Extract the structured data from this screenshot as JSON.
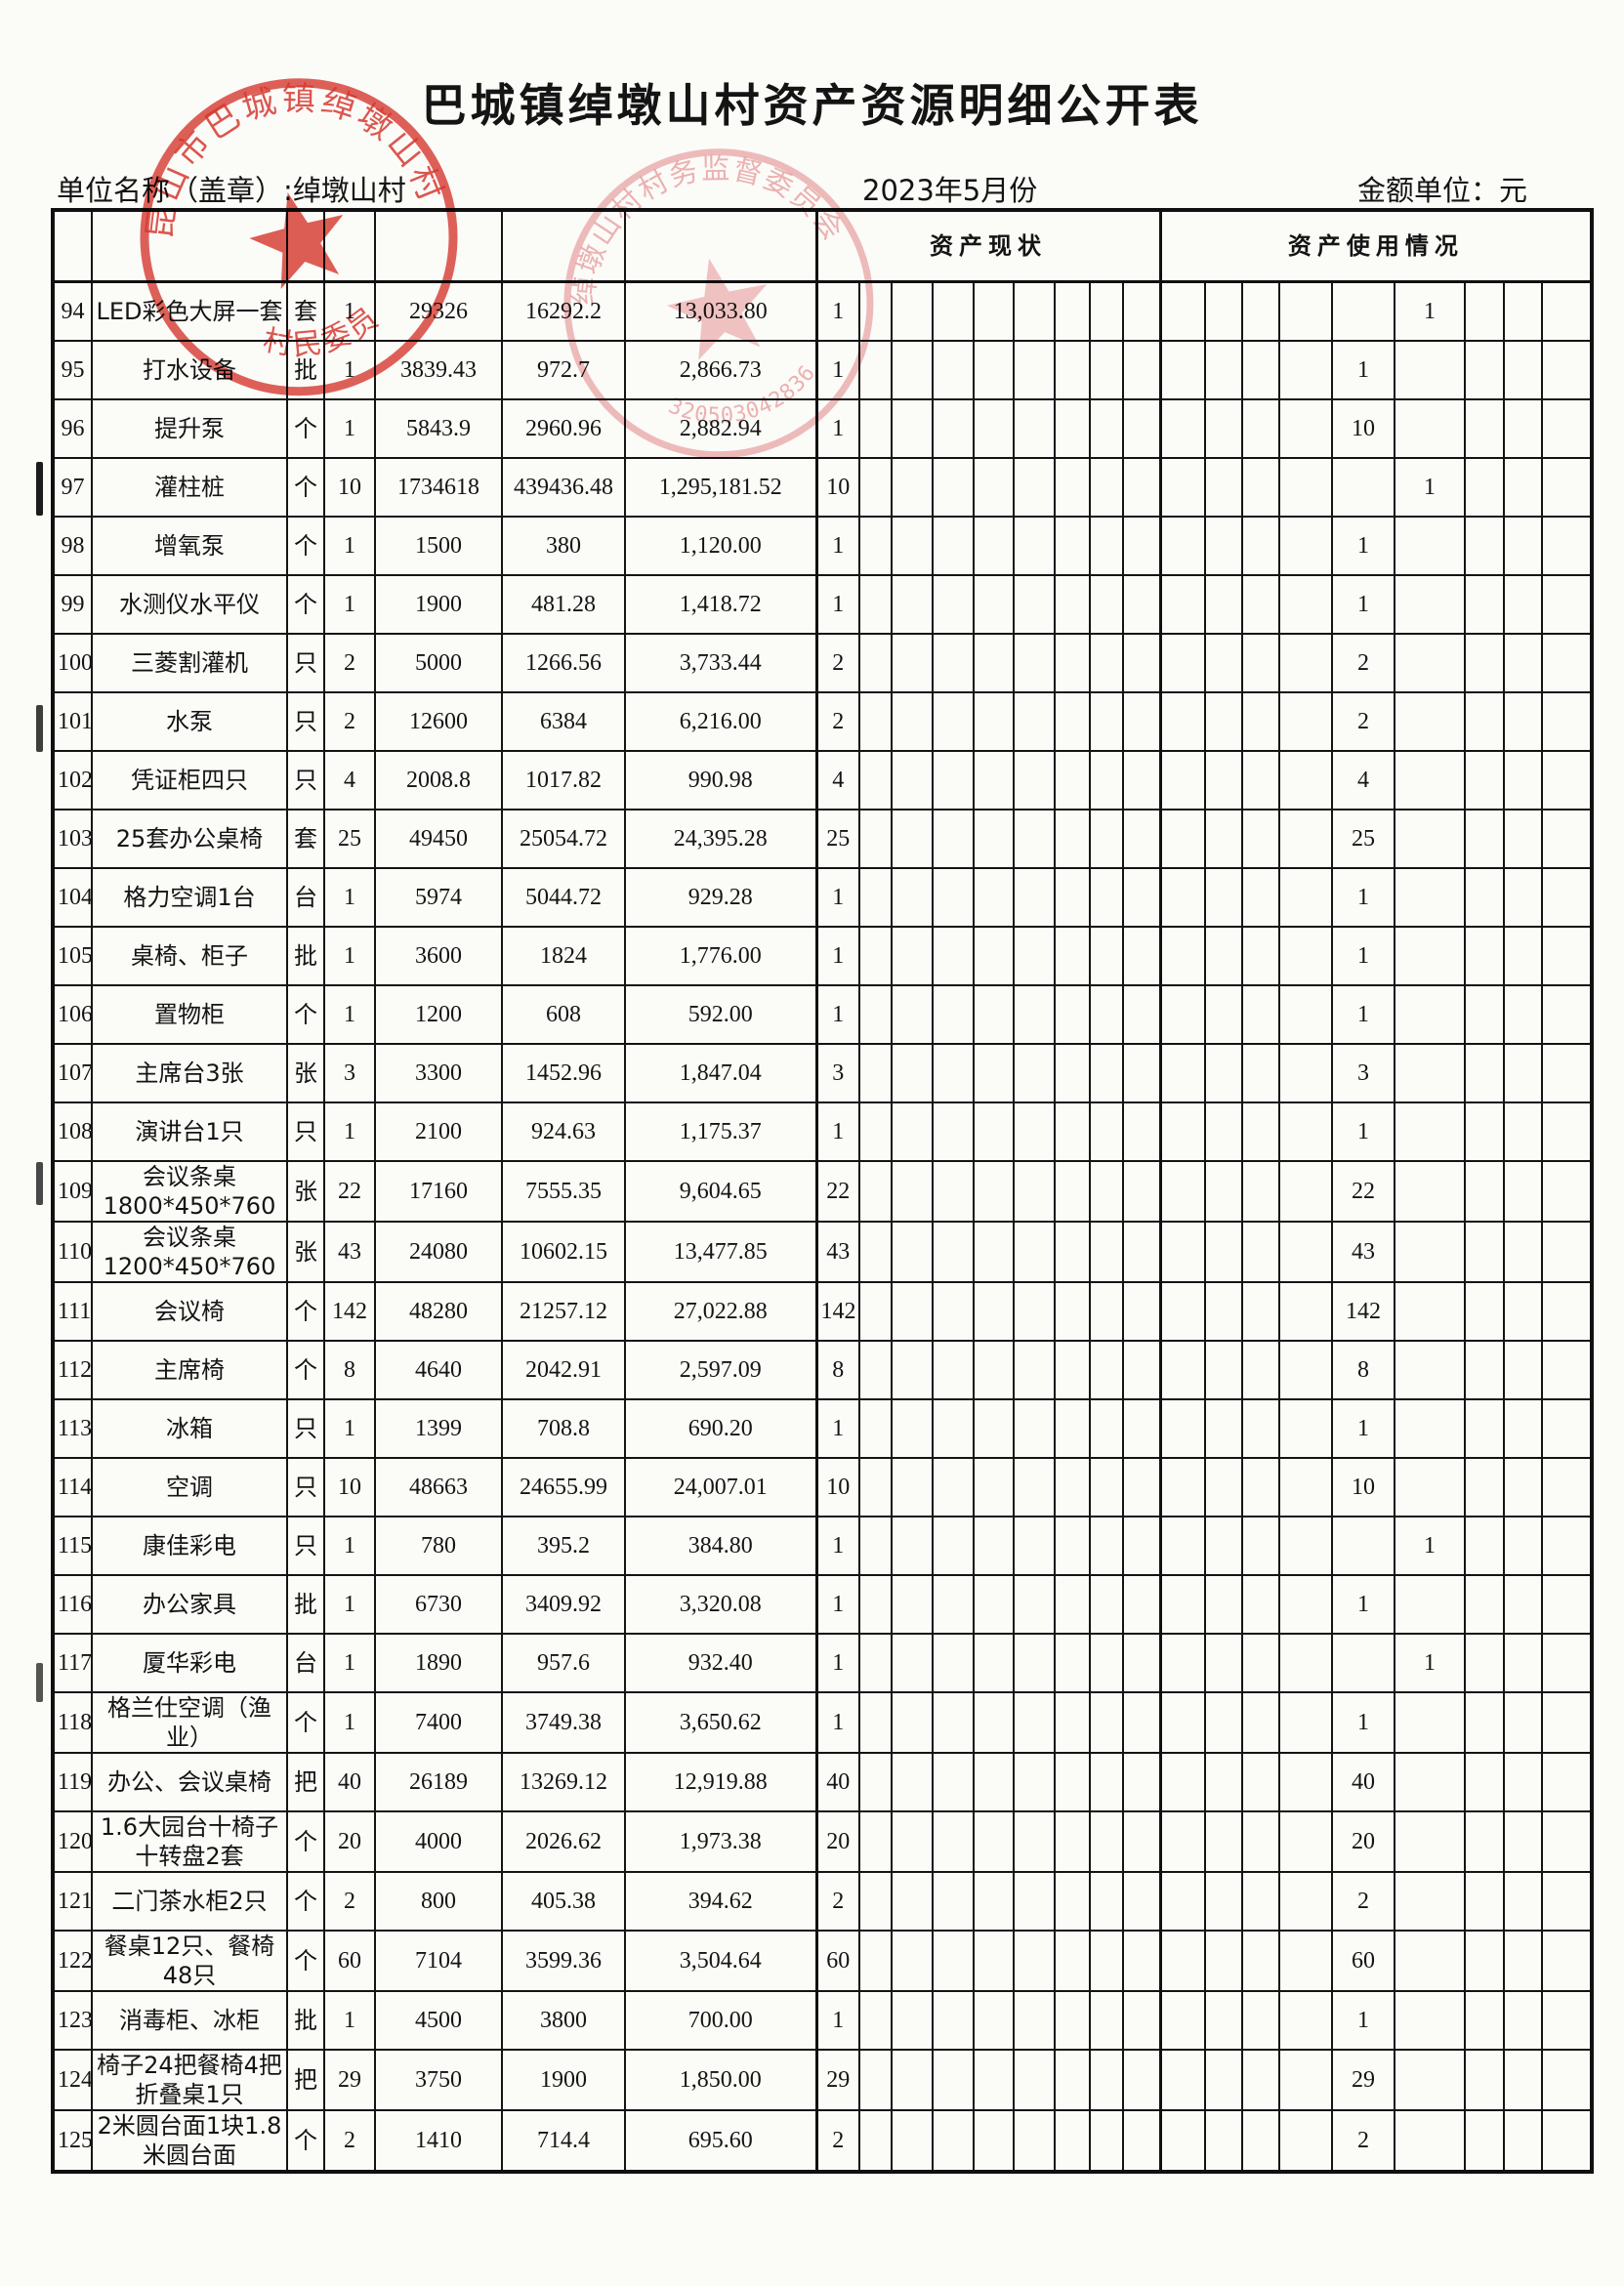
{
  "page": {
    "title": "巴城镇绰墩山村资产资源明细公开表",
    "unit_label": "单位名称（盖章）:绰墩山村",
    "period": "2023年5月份",
    "amount_unit": "金额单位：元"
  },
  "colors": {
    "stamp_red": "#d93a31",
    "stamp_pink": "#e2767b",
    "grid_black": "#141414"
  },
  "table": {
    "group_headers": {
      "status": "资产现状",
      "usage": "资产使用情况"
    },
    "rows": [
      {
        "no": "94",
        "name": "LED彩色大屏一套",
        "unit": "套",
        "qty": "1",
        "orig": "29326",
        "depr": "16292.2",
        "net": "13,033.80",
        "sq": "1",
        "uc": 5,
        "uv": "1"
      },
      {
        "no": "95",
        "name": "打水设备",
        "unit": "批",
        "qty": "1",
        "orig": "3839.43",
        "depr": "972.7",
        "net": "2,866.73",
        "sq": "1",
        "uc": 4,
        "uv": "1"
      },
      {
        "no": "96",
        "name": "提升泵",
        "unit": "个",
        "qty": "1",
        "orig": "5843.9",
        "depr": "2960.96",
        "net": "2,882.94",
        "sq": "1",
        "uc": 4,
        "uv": "10"
      },
      {
        "no": "97",
        "name": "灌柱桩",
        "unit": "个",
        "qty": "10",
        "orig": "1734618",
        "depr": "439436.48",
        "net": "1,295,181.52",
        "sq": "10",
        "uc": 5,
        "uv": "1"
      },
      {
        "no": "98",
        "name": "增氧泵",
        "unit": "个",
        "qty": "1",
        "orig": "1500",
        "depr": "380",
        "net": "1,120.00",
        "sq": "1",
        "uc": 4,
        "uv": "1"
      },
      {
        "no": "99",
        "name": "水测仪水平仪",
        "unit": "个",
        "qty": "1",
        "orig": "1900",
        "depr": "481.28",
        "net": "1,418.72",
        "sq": "1",
        "uc": 4,
        "uv": "1"
      },
      {
        "no": "100",
        "name": "三菱割灌机",
        "unit": "只",
        "qty": "2",
        "orig": "5000",
        "depr": "1266.56",
        "net": "3,733.44",
        "sq": "2",
        "uc": 4,
        "uv": "2"
      },
      {
        "no": "101",
        "name": "水泵",
        "unit": "只",
        "qty": "2",
        "orig": "12600",
        "depr": "6384",
        "net": "6,216.00",
        "sq": "2",
        "uc": 4,
        "uv": "2"
      },
      {
        "no": "102",
        "name": "凭证柜四只",
        "unit": "只",
        "qty": "4",
        "orig": "2008.8",
        "depr": "1017.82",
        "net": "990.98",
        "sq": "4",
        "uc": 4,
        "uv": "4"
      },
      {
        "no": "103",
        "name": "25套办公桌椅",
        "unit": "套",
        "qty": "25",
        "orig": "49450",
        "depr": "25054.72",
        "net": "24,395.28",
        "sq": "25",
        "uc": 4,
        "uv": "25"
      },
      {
        "no": "104",
        "name": "格力空调1台",
        "unit": "台",
        "qty": "1",
        "orig": "5974",
        "depr": "5044.72",
        "net": "929.28",
        "sq": "1",
        "uc": 4,
        "uv": "1"
      },
      {
        "no": "105",
        "name": "桌椅、柜子",
        "unit": "批",
        "qty": "1",
        "orig": "3600",
        "depr": "1824",
        "net": "1,776.00",
        "sq": "1",
        "uc": 4,
        "uv": "1"
      },
      {
        "no": "106",
        "name": "置物柜",
        "unit": "个",
        "qty": "1",
        "orig": "1200",
        "depr": "608",
        "net": "592.00",
        "sq": "1",
        "uc": 4,
        "uv": "1"
      },
      {
        "no": "107",
        "name": "主席台3张",
        "unit": "张",
        "qty": "3",
        "orig": "3300",
        "depr": "1452.96",
        "net": "1,847.04",
        "sq": "3",
        "uc": 4,
        "uv": "3"
      },
      {
        "no": "108",
        "name": "演讲台1只",
        "unit": "只",
        "qty": "1",
        "orig": "2100",
        "depr": "924.63",
        "net": "1,175.37",
        "sq": "1",
        "uc": 4,
        "uv": "1"
      },
      {
        "no": "109",
        "name": "会议条桌1800*450*760",
        "unit": "张",
        "qty": "22",
        "orig": "17160",
        "depr": "7555.35",
        "net": "9,604.65",
        "sq": "22",
        "uc": 4,
        "uv": "22"
      },
      {
        "no": "110",
        "name": "会议条桌1200*450*760",
        "unit": "张",
        "qty": "43",
        "orig": "24080",
        "depr": "10602.15",
        "net": "13,477.85",
        "sq": "43",
        "uc": 4,
        "uv": "43"
      },
      {
        "no": "111",
        "name": "会议椅",
        "unit": "个",
        "qty": "142",
        "orig": "48280",
        "depr": "21257.12",
        "net": "27,022.88",
        "sq": "142",
        "uc": 4,
        "uv": "142"
      },
      {
        "no": "112",
        "name": "主席椅",
        "unit": "个",
        "qty": "8",
        "orig": "4640",
        "depr": "2042.91",
        "net": "2,597.09",
        "sq": "8",
        "uc": 4,
        "uv": "8"
      },
      {
        "no": "113",
        "name": "冰箱",
        "unit": "只",
        "qty": "1",
        "orig": "1399",
        "depr": "708.8",
        "net": "690.20",
        "sq": "1",
        "uc": 4,
        "uv": "1"
      },
      {
        "no": "114",
        "name": "空调",
        "unit": "只",
        "qty": "10",
        "orig": "48663",
        "depr": "24655.99",
        "net": "24,007.01",
        "sq": "10",
        "uc": 4,
        "uv": "10"
      },
      {
        "no": "115",
        "name": "康佳彩电",
        "unit": "只",
        "qty": "1",
        "orig": "780",
        "depr": "395.2",
        "net": "384.80",
        "sq": "1",
        "uc": 5,
        "uv": "1"
      },
      {
        "no": "116",
        "name": "办公家具",
        "unit": "批",
        "qty": "1",
        "orig": "6730",
        "depr": "3409.92",
        "net": "3,320.08",
        "sq": "1",
        "uc": 4,
        "uv": "1"
      },
      {
        "no": "117",
        "name": "厦华彩电",
        "unit": "台",
        "qty": "1",
        "orig": "1890",
        "depr": "957.6",
        "net": "932.40",
        "sq": "1",
        "uc": 5,
        "uv": "1"
      },
      {
        "no": "118",
        "name": "格兰仕空调（渔业）",
        "unit": "个",
        "qty": "1",
        "orig": "7400",
        "depr": "3749.38",
        "net": "3,650.62",
        "sq": "1",
        "uc": 4,
        "uv": "1"
      },
      {
        "no": "119",
        "name": "办公、会议桌椅",
        "unit": "把",
        "qty": "40",
        "orig": "26189",
        "depr": "13269.12",
        "net": "12,919.88",
        "sq": "40",
        "uc": 4,
        "uv": "40"
      },
      {
        "no": "120",
        "name": "1.6大园台十椅子十转盘2套",
        "unit": "个",
        "qty": "20",
        "orig": "4000",
        "depr": "2026.62",
        "net": "1,973.38",
        "sq": "20",
        "uc": 4,
        "uv": "20"
      },
      {
        "no": "121",
        "name": "二门茶水柜2只",
        "unit": "个",
        "qty": "2",
        "orig": "800",
        "depr": "405.38",
        "net": "394.62",
        "sq": "2",
        "uc": 4,
        "uv": "2"
      },
      {
        "no": "122",
        "name": "餐桌12只、餐椅48只",
        "unit": "个",
        "qty": "60",
        "orig": "7104",
        "depr": "3599.36",
        "net": "3,504.64",
        "sq": "60",
        "uc": 4,
        "uv": "60"
      },
      {
        "no": "123",
        "name": "消毒柜、冰柜",
        "unit": "批",
        "qty": "1",
        "orig": "4500",
        "depr": "3800",
        "net": "700.00",
        "sq": "1",
        "uc": 4,
        "uv": "1"
      },
      {
        "no": "124",
        "name": "椅子24把餐椅4把折叠桌1只",
        "unit": "把",
        "qty": "29",
        "orig": "3750",
        "depr": "1900",
        "net": "1,850.00",
        "sq": "29",
        "uc": 4,
        "uv": "29"
      },
      {
        "no": "125",
        "name": "2米圆台面1块1.8米圆台面",
        "unit": "个",
        "qty": "2",
        "orig": "1410",
        "depr": "714.4",
        "net": "695.60",
        "sq": "2",
        "uc": 4,
        "uv": "2"
      }
    ]
  },
  "stamps": {
    "left": {
      "arc_top": "昆山市巴城镇绰墩山村",
      "arc_bottom": "村民委员会"
    },
    "right": {
      "arc_top": "绰墩山村村务监督委员会",
      "code": "3205030428364"
    }
  }
}
